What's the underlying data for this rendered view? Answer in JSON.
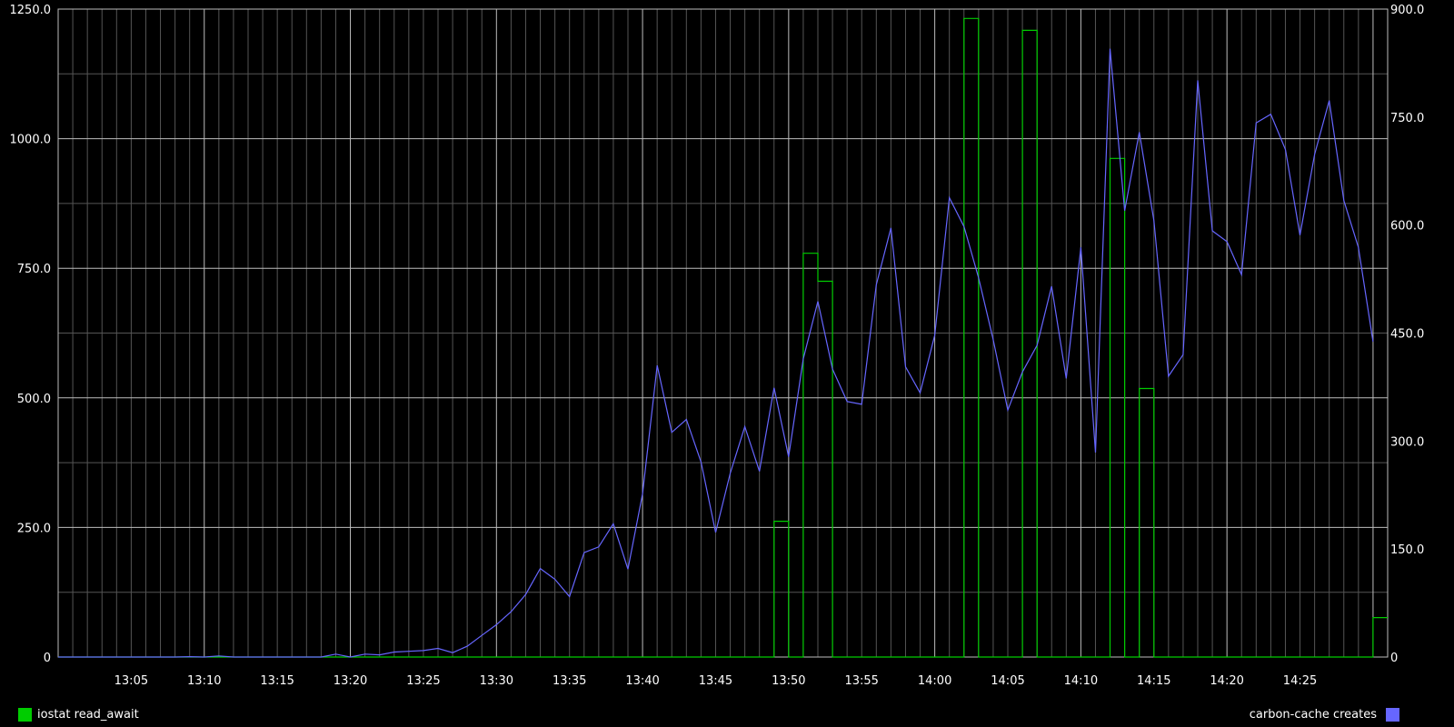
{
  "chart_data": {
    "type": "line",
    "title": "",
    "xlabel": "",
    "ylabel": "",
    "background": "#000000",
    "grid": true,
    "x_range": [
      "13:00",
      "14:31"
    ],
    "x_tick_labels": [
      "13:05",
      "13:10",
      "13:15",
      "13:20",
      "13:25",
      "13:30",
      "13:35",
      "13:40",
      "13:45",
      "13:50",
      "13:55",
      "14:00",
      "14:05",
      "14:10",
      "14:15",
      "14:20",
      "14:25"
    ],
    "left_axis": {
      "ylim": [
        0,
        1250
      ],
      "tick_labels": [
        "0",
        "250.0",
        "500.0",
        "750.0",
        "1000.0",
        "1250.0"
      ]
    },
    "right_axis": {
      "ylim": [
        0,
        900
      ],
      "tick_labels": [
        "0",
        "150.0",
        "300.0",
        "450.0",
        "600.0",
        "750.0",
        "900.0"
      ]
    },
    "legend": {
      "position": "bottom"
    },
    "series": [
      {
        "name": "iostat read_await",
        "axis": "left",
        "color": "#00cc00",
        "step": true,
        "points": [
          [
            "13:00",
            0
          ],
          [
            "13:49",
            0
          ],
          [
            "13:49",
            262
          ],
          [
            "13:50",
            262
          ],
          [
            "13:50",
            0
          ],
          [
            "13:51",
            0
          ],
          [
            "13:51",
            779
          ],
          [
            "13:52",
            779
          ],
          [
            "13:52",
            725
          ],
          [
            "13:53",
            725
          ],
          [
            "13:53",
            0
          ],
          [
            "14:02",
            0
          ],
          [
            "14:02",
            1232
          ],
          [
            "14:03",
            1232
          ],
          [
            "14:03",
            0
          ],
          [
            "14:06",
            0
          ],
          [
            "14:06",
            1209
          ],
          [
            "14:07",
            1209
          ],
          [
            "14:07",
            0
          ],
          [
            "14:12",
            0
          ],
          [
            "14:12",
            962
          ],
          [
            "14:13",
            962
          ],
          [
            "14:13",
            0
          ],
          [
            "14:14",
            0
          ],
          [
            "14:14",
            518
          ],
          [
            "14:15",
            518
          ],
          [
            "14:15",
            0
          ],
          [
            "14:30",
            0
          ],
          [
            "14:30",
            76
          ],
          [
            "14:31",
            76
          ]
        ]
      },
      {
        "name": "carbon-cache creates",
        "axis": "right",
        "color": "#6666ff",
        "step": false,
        "points": [
          [
            "13:00",
            0
          ],
          [
            "13:08",
            0
          ],
          [
            "13:09",
            0.5
          ],
          [
            "13:10",
            0
          ],
          [
            "13:11",
            1.5
          ],
          [
            "13:12",
            0
          ],
          [
            "13:18",
            0
          ],
          [
            "13:19",
            4
          ],
          [
            "13:20",
            0
          ],
          [
            "13:21",
            4
          ],
          [
            "13:22",
            3
          ],
          [
            "13:23",
            7
          ],
          [
            "13:24",
            8
          ],
          [
            "13:25",
            9
          ],
          [
            "13:26",
            12
          ],
          [
            "13:27",
            6
          ],
          [
            "13:28",
            15
          ],
          [
            "13:29",
            30
          ],
          [
            "13:30",
            45
          ],
          [
            "13:31",
            63
          ],
          [
            "13:32",
            87
          ],
          [
            "13:33",
            123
          ],
          [
            "13:34",
            108
          ],
          [
            "13:35",
            84
          ],
          [
            "13:36",
            145
          ],
          [
            "13:37",
            153
          ],
          [
            "13:38",
            185
          ],
          [
            "13:39",
            122
          ],
          [
            "13:40",
            227
          ],
          [
            "13:41",
            405
          ],
          [
            "13:42",
            312
          ],
          [
            "13:43",
            330
          ],
          [
            "13:44",
            271
          ],
          [
            "13:45",
            173
          ],
          [
            "13:46",
            255
          ],
          [
            "13:47",
            320
          ],
          [
            "13:48",
            258
          ],
          [
            "13:49",
            374
          ],
          [
            "13:50",
            278
          ],
          [
            "13:51",
            414
          ],
          [
            "13:52",
            494
          ],
          [
            "13:53",
            400
          ],
          [
            "13:54",
            355
          ],
          [
            "13:55",
            351
          ],
          [
            "13:56",
            517
          ],
          [
            "13:57",
            596
          ],
          [
            "13:58",
            403
          ],
          [
            "13:59",
            367
          ],
          [
            "14:00",
            447
          ],
          [
            "14:01",
            638
          ],
          [
            "14:02",
            598
          ],
          [
            "14:03",
            527
          ],
          [
            "14:04",
            441
          ],
          [
            "14:05",
            343
          ],
          [
            "14:06",
            396
          ],
          [
            "14:07",
            433
          ],
          [
            "14:08",
            515
          ],
          [
            "14:09",
            387
          ],
          [
            "14:10",
            569
          ],
          [
            "14:11",
            284
          ],
          [
            "14:12",
            845
          ],
          [
            "14:13",
            620
          ],
          [
            "14:14",
            729
          ],
          [
            "14:15",
            606
          ],
          [
            "14:16",
            390
          ],
          [
            "14:17",
            420
          ],
          [
            "14:18",
            801
          ],
          [
            "14:19",
            592
          ],
          [
            "14:20",
            577
          ],
          [
            "14:21",
            531
          ],
          [
            "14:22",
            742
          ],
          [
            "14:23",
            754
          ],
          [
            "14:24",
            705
          ],
          [
            "14:25",
            586
          ],
          [
            "14:26",
            698
          ],
          [
            "14:27",
            773
          ],
          [
            "14:28",
            634
          ],
          [
            "14:29",
            569
          ],
          [
            "14:30",
            438
          ]
        ]
      }
    ]
  }
}
